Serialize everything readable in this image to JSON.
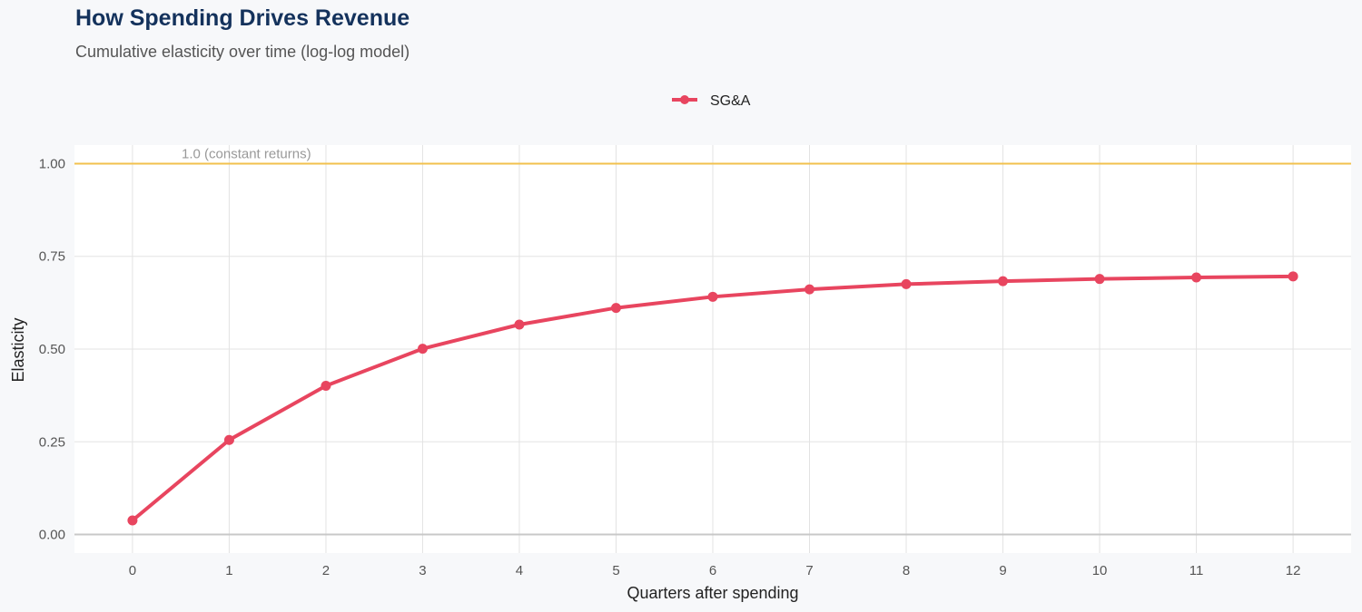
{
  "chart_data": {
    "type": "line",
    "title": "How Spending Drives Revenue",
    "subtitle": "Cumulative elasticity over time (log-log model)",
    "xlabel": "Quarters after spending",
    "ylabel": "Elasticity",
    "x": [
      0,
      1,
      2,
      3,
      4,
      5,
      6,
      7,
      8,
      9,
      10,
      11,
      12
    ],
    "series": [
      {
        "name": "SG&A",
        "color": "#e8455f",
        "values": [
          0.038,
          0.255,
          0.401,
          0.501,
          0.566,
          0.611,
          0.641,
          0.661,
          0.675,
          0.683,
          0.689,
          0.693,
          0.696
        ]
      }
    ],
    "xticks": [
      "0",
      "1",
      "2",
      "3",
      "4",
      "5",
      "6",
      "7",
      "8",
      "9",
      "10",
      "11",
      "12"
    ],
    "yticks": [
      "0.00",
      "0.25",
      "0.50",
      "0.75",
      "1.00"
    ],
    "ylim": [
      -0.05,
      1.05
    ],
    "xlim": [
      -0.6,
      12.6
    ],
    "reference_line": {
      "y": 1.0,
      "label": "1.0 (constant returns)",
      "color": "#f2c14e"
    },
    "grid": true,
    "legend_position": "top"
  }
}
